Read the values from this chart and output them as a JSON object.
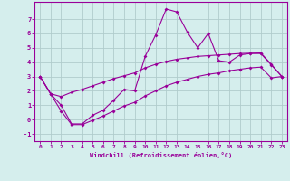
{
  "xlabel": "Windchill (Refroidissement éolien,°C)",
  "x": [
    0,
    1,
    2,
    3,
    4,
    5,
    6,
    7,
    8,
    9,
    10,
    11,
    12,
    13,
    14,
    15,
    16,
    17,
    18,
    19,
    20,
    21,
    22,
    23
  ],
  "y_main": [
    3.0,
    1.8,
    1.0,
    -0.3,
    -0.3,
    0.3,
    0.65,
    1.35,
    2.1,
    2.0,
    4.4,
    5.9,
    7.7,
    7.5,
    6.1,
    5.0,
    6.0,
    4.1,
    4.0,
    4.5,
    4.6,
    4.6,
    3.8,
    3.0
  ],
  "y_upper": [
    3.0,
    1.8,
    1.6,
    1.9,
    2.1,
    2.35,
    2.6,
    2.85,
    3.05,
    3.25,
    3.6,
    3.85,
    4.05,
    4.2,
    4.3,
    4.4,
    4.45,
    4.5,
    4.55,
    4.6,
    4.62,
    4.64,
    3.85,
    3.0
  ],
  "y_lower": [
    3.0,
    1.8,
    0.6,
    -0.35,
    -0.35,
    -0.05,
    0.25,
    0.6,
    0.95,
    1.2,
    1.65,
    2.0,
    2.35,
    2.6,
    2.8,
    3.0,
    3.15,
    3.25,
    3.4,
    3.5,
    3.6,
    3.65,
    2.9,
    3.0
  ],
  "color": "#990099",
  "bg_color": "#d5eeed",
  "grid_color": "#b0cccc",
  "ylim": [
    -1.5,
    8.2
  ],
  "xlim": [
    -0.5,
    23.5
  ],
  "yticks": [
    -1,
    0,
    1,
    2,
    3,
    4,
    5,
    6,
    7
  ],
  "xticks": [
    0,
    1,
    2,
    3,
    4,
    5,
    6,
    7,
    8,
    9,
    10,
    11,
    12,
    13,
    14,
    15,
    16,
    17,
    18,
    19,
    20,
    21,
    22,
    23
  ]
}
